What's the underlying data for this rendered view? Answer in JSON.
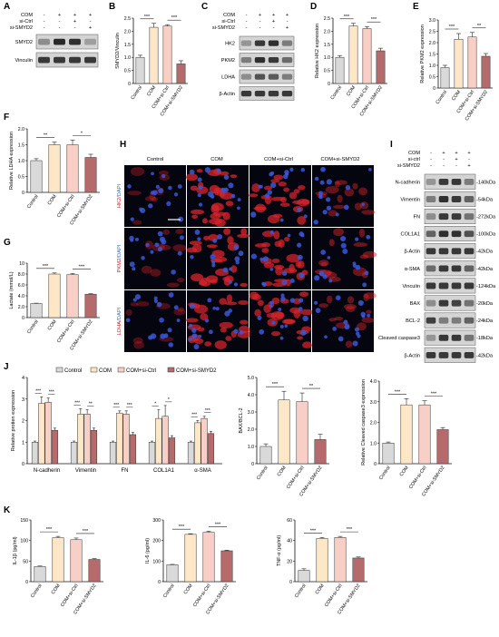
{
  "colors": {
    "control": "#d9d9d9",
    "com": "#fde7c6",
    "ctrl": "#f7cfc7",
    "smyd2": "#b56b6b",
    "axis": "#111111",
    "blot_bg": "#d4d4d4",
    "band": "#2a2a2a",
    "micro_bg": "#05050f"
  },
  "group_labels": [
    "Control",
    "COM",
    "COM+si-Ctrl",
    "COM+si-SMYD2"
  ],
  "panels": {
    "A": {
      "letter": "A",
      "row_labels": [
        "COM",
        "si-Ctrl",
        "si-SMYD2"
      ],
      "signs": [
        [
          "-",
          "+",
          "+",
          "+"
        ],
        [
          "-",
          "-",
          "+",
          "-"
        ],
        [
          "-",
          "-",
          "-",
          "+"
        ]
      ],
      "blots": [
        {
          "label": "SMYD2",
          "intensity": [
            0.35,
            0.95,
            0.9,
            0.25
          ]
        },
        {
          "label": "Vinculin",
          "intensity": [
            0.85,
            0.85,
            0.85,
            0.85
          ]
        }
      ]
    },
    "C": {
      "letter": "C",
      "row_labels": [
        "COM",
        "si-Ctrl",
        "si-SMYD2"
      ],
      "signs": [
        [
          "-",
          "+",
          "+",
          "+"
        ],
        [
          "-",
          "-",
          "+",
          "-"
        ],
        [
          "-",
          "-",
          "-",
          "+"
        ]
      ],
      "blots": [
        {
          "label": "HK2",
          "intensity": [
            0.3,
            0.85,
            0.9,
            0.45
          ]
        },
        {
          "label": "PKM2",
          "intensity": [
            0.45,
            0.9,
            0.85,
            0.55
          ]
        },
        {
          "label": "LDHA",
          "intensity": [
            0.35,
            0.7,
            0.65,
            0.45
          ]
        },
        {
          "label": "β-Actin",
          "intensity": [
            0.85,
            0.85,
            0.85,
            0.85
          ]
        }
      ]
    },
    "I": {
      "letter": "I",
      "row_labels": [
        "COM",
        "si-ctrl",
        "si-SMYD2"
      ],
      "signs": [
        [
          "-",
          "+",
          "+",
          "+"
        ],
        [
          "-",
          "-",
          "+",
          "-"
        ],
        [
          "-",
          "-",
          "-",
          "+"
        ]
      ],
      "blots": [
        {
          "label": "N-cadherin",
          "size": "140kDa",
          "intensity": [
            0.3,
            0.85,
            0.85,
            0.45
          ]
        },
        {
          "label": "Vimentin",
          "size": "54kDa",
          "intensity": [
            0.45,
            0.9,
            0.85,
            0.6
          ]
        },
        {
          "label": "FN",
          "size": "272kDa",
          "intensity": [
            0.35,
            0.85,
            0.85,
            0.5
          ]
        },
        {
          "label": "COL1A1",
          "size": "100kDa",
          "intensity": [
            0.6,
            0.9,
            0.9,
            0.7
          ]
        },
        {
          "label": "β-Actin",
          "size": "42kDa",
          "intensity": [
            0.85,
            0.85,
            0.85,
            0.85
          ]
        },
        {
          "label": "α-SMA",
          "size": "42kDa",
          "intensity": [
            0.55,
            0.85,
            0.85,
            0.6
          ]
        },
        {
          "label": "Vinculin",
          "size": "124kDa",
          "intensity": [
            0.85,
            0.85,
            0.85,
            0.85
          ]
        },
        {
          "label": "BAX",
          "size": "20kDa",
          "intensity": [
            0.35,
            0.85,
            0.8,
            0.5
          ]
        },
        {
          "label": "BCL-2",
          "size": "24kDa",
          "intensity": [
            0.8,
            0.45,
            0.45,
            0.6
          ]
        },
        {
          "label": "Cleaved caspase3",
          "size": "18kDa",
          "intensity": [
            0.3,
            0.85,
            0.85,
            0.5
          ]
        },
        {
          "label": "β-Actin",
          "size": "42kDa",
          "intensity": [
            0.85,
            0.85,
            0.85,
            0.85
          ]
        }
      ]
    },
    "H": {
      "letter": "H",
      "columns": [
        "Control",
        "COM",
        "COM+si-Ctrl",
        "COM+si-SMYD2"
      ],
      "rows": [
        {
          "marker": "HK2",
          "counterstain": "/DAPI",
          "intensity": [
            0.15,
            0.85,
            0.8,
            0.35
          ]
        },
        {
          "marker": "PKM2",
          "counterstain": "/DAPI",
          "intensity": [
            0.2,
            0.85,
            0.8,
            0.4
          ]
        },
        {
          "marker": "LDHA",
          "counterstain": "/DAPI",
          "intensity": [
            0.15,
            0.8,
            0.8,
            0.35
          ]
        }
      ]
    }
  },
  "chart_data": [
    {
      "id": "B",
      "type": "bar",
      "title": "",
      "ylabel": "SMYD2/Vinculin",
      "ylim": [
        0,
        2.5
      ],
      "yticks": [
        0,
        0.5,
        1.0,
        1.5,
        2.0,
        2.5
      ],
      "categories": [
        "Control",
        "COM",
        "COM+si-Ctrl",
        "COM+si-SMYD2"
      ],
      "values": [
        1.0,
        2.15,
        2.2,
        0.75
      ],
      "errors": [
        0.08,
        0.15,
        0.05,
        0.12
      ],
      "sig": [
        {
          "from": 0,
          "to": 1,
          "label": "***"
        },
        {
          "from": 2,
          "to": 3,
          "label": "***"
        }
      ]
    },
    {
      "id": "D",
      "type": "bar",
      "title": "",
      "ylabel": "Relative HK2 expression",
      "ylim": [
        0,
        2.5
      ],
      "yticks": [
        0,
        0.5,
        1.0,
        1.5,
        2.0,
        2.5
      ],
      "categories": [
        "Control",
        "COM",
        "COM+si-Ctrl",
        "COM+si-SMYD2"
      ],
      "values": [
        1.0,
        2.2,
        2.1,
        1.25
      ],
      "errors": [
        0.07,
        0.1,
        0.08,
        0.1
      ],
      "sig": [
        {
          "from": 0,
          "to": 1,
          "label": "***"
        },
        {
          "from": 2,
          "to": 3,
          "label": "***"
        }
      ]
    },
    {
      "id": "E",
      "type": "bar",
      "title": "",
      "ylabel": "Relative PKM2 expression",
      "ylim": [
        0,
        3.0
      ],
      "yticks": [
        0,
        0.5,
        1.0,
        1.5,
        2.0,
        2.5,
        3.0
      ],
      "categories": [
        "Control",
        "COM",
        "COM+si-Ctrl",
        "COM+si-SMYD2"
      ],
      "values": [
        0.9,
        2.15,
        2.25,
        1.4
      ],
      "errors": [
        0.1,
        0.25,
        0.2,
        0.12
      ],
      "sig": [
        {
          "from": 0,
          "to": 1,
          "label": "***"
        },
        {
          "from": 2,
          "to": 3,
          "label": "**"
        }
      ]
    },
    {
      "id": "F",
      "type": "bar",
      "title": "",
      "ylabel": "Relative LDHA expression",
      "ylim": [
        0,
        2.0
      ],
      "yticks": [
        0,
        0.5,
        1.0,
        1.5,
        2.0
      ],
      "categories": [
        "Control",
        "COM",
        "COM+si-Ctrl",
        "COM+si-SMYD2"
      ],
      "values": [
        1.0,
        1.5,
        1.5,
        1.1
      ],
      "errors": [
        0.06,
        0.08,
        0.15,
        0.1
      ],
      "sig": [
        {
          "from": 0,
          "to": 1,
          "label": "**"
        },
        {
          "from": 2,
          "to": 3,
          "label": "*"
        }
      ]
    },
    {
      "id": "G",
      "type": "bar",
      "title": "",
      "ylabel": "Lactate  (mmol/L)",
      "ylim": [
        0,
        10
      ],
      "yticks": [
        0,
        2,
        4,
        6,
        8,
        10
      ],
      "categories": [
        "Control",
        "COM",
        "COM+si-Ctrl",
        "COM+si-SMYD2"
      ],
      "values": [
        2.6,
        8.0,
        7.9,
        4.3
      ],
      "errors": [
        0.05,
        0.2,
        0.2,
        0.1
      ],
      "sig": [
        {
          "from": 0,
          "to": 1,
          "label": "***"
        },
        {
          "from": 2,
          "to": 3,
          "label": "***"
        }
      ]
    },
    {
      "id": "J1",
      "type": "bar",
      "title": "",
      "ylabel": "Relative protien expression",
      "ylim": [
        0,
        4
      ],
      "yticks": [
        0,
        1,
        2,
        3,
        4
      ],
      "categories": [
        "N-cadherin",
        "Vimentin",
        "FN",
        "COL1A1",
        "α-SMA"
      ],
      "legend": "top",
      "series": [
        {
          "name": "Control",
          "values": [
            1.0,
            1.0,
            1.0,
            1.0,
            1.0
          ],
          "errors": [
            0.05,
            0.05,
            0.05,
            0.05,
            0.05
          ]
        },
        {
          "name": "COM",
          "values": [
            2.8,
            2.3,
            2.35,
            2.1,
            1.9
          ],
          "errors": [
            0.3,
            0.25,
            0.1,
            0.4,
            0.1
          ]
        },
        {
          "name": "COM+si-Ctrl",
          "values": [
            2.85,
            2.3,
            2.3,
            2.2,
            2.1
          ],
          "errors": [
            0.2,
            0.2,
            0.15,
            0.5,
            0.1
          ]
        },
        {
          "name": "COM+si-SMYD2",
          "values": [
            1.55,
            1.55,
            1.35,
            1.2,
            1.4
          ],
          "errors": [
            0.1,
            0.1,
            0.1,
            0.1,
            0.1
          ]
        }
      ],
      "sig": [
        [
          "***",
          "***"
        ],
        [
          "***",
          "**"
        ],
        [
          "***",
          "***"
        ],
        [
          "*",
          "*"
        ],
        [
          "***",
          "***"
        ]
      ]
    },
    {
      "id": "J2",
      "type": "bar",
      "title": "",
      "ylabel": "BAX/BCL-2",
      "ylim": [
        0,
        5
      ],
      "yticks": [
        0,
        1,
        2,
        3,
        4,
        5
      ],
      "categories": [
        "Control",
        "COM",
        "COM+si-Ctrl",
        "COM+si-SMYD2"
      ],
      "values": [
        1.0,
        3.7,
        3.6,
        1.4
      ],
      "errors": [
        0.15,
        0.5,
        0.5,
        0.3
      ],
      "sig": [
        {
          "from": 0,
          "to": 1,
          "label": "***"
        },
        {
          "from": 2,
          "to": 3,
          "label": "**"
        }
      ]
    },
    {
      "id": "J3",
      "type": "bar",
      "title": "",
      "ylabel": "Relative Cleaved caspase3 expression",
      "ylim": [
        0,
        4
      ],
      "yticks": [
        0,
        1,
        2,
        3,
        4
      ],
      "categories": [
        "Control",
        "COM",
        "COM+si-Ctrl",
        "COM+si-SMYD2"
      ],
      "values": [
        1.0,
        2.85,
        2.85,
        1.65
      ],
      "errors": [
        0.05,
        0.3,
        0.2,
        0.1
      ],
      "sig": [
        {
          "from": 0,
          "to": 1,
          "label": "***"
        },
        {
          "from": 2,
          "to": 3,
          "label": "***"
        }
      ]
    },
    {
      "id": "K1",
      "type": "bar",
      "title": "",
      "ylabel": "IL-1β (pg/ml)",
      "ylim": [
        0,
        150
      ],
      "yticks": [
        0,
        50,
        100,
        150
      ],
      "categories": [
        "Control",
        "COM",
        "COM+si-Ctrl",
        "COM+si-SMYD2"
      ],
      "values": [
        37,
        107,
        102,
        54
      ],
      "errors": [
        1,
        3,
        4,
        2
      ],
      "sig": [
        {
          "from": 0,
          "to": 1,
          "label": "***"
        },
        {
          "from": 2,
          "to": 3,
          "label": "***"
        }
      ]
    },
    {
      "id": "K2",
      "type": "bar",
      "title": "",
      "ylabel": "IL-6 (pg/ml)",
      "ylim": [
        0,
        300
      ],
      "yticks": [
        0,
        100,
        200,
        300
      ],
      "categories": [
        "Control",
        "COM",
        "COM+si-Ctrl",
        "COM+si-SMYD2"
      ],
      "values": [
        82,
        230,
        240,
        150
      ],
      "errors": [
        2,
        3,
        5,
        3
      ],
      "sig": [
        {
          "from": 0,
          "to": 1,
          "label": "***"
        },
        {
          "from": 2,
          "to": 3,
          "label": "***"
        }
      ]
    },
    {
      "id": "K3",
      "type": "bar",
      "title": "",
      "ylabel": "TNF-α (pg/ml)",
      "ylim": [
        0,
        60
      ],
      "yticks": [
        0,
        20,
        40,
        60
      ],
      "categories": [
        "Control",
        "COM",
        "COM+si-Ctrl",
        "COM+si-SMYD2"
      ],
      "values": [
        11,
        42,
        43,
        23
      ],
      "errors": [
        1.5,
        1,
        1,
        1
      ],
      "sig": [
        {
          "from": 0,
          "to": 1,
          "label": "***"
        },
        {
          "from": 2,
          "to": 3,
          "label": "***"
        }
      ]
    }
  ]
}
